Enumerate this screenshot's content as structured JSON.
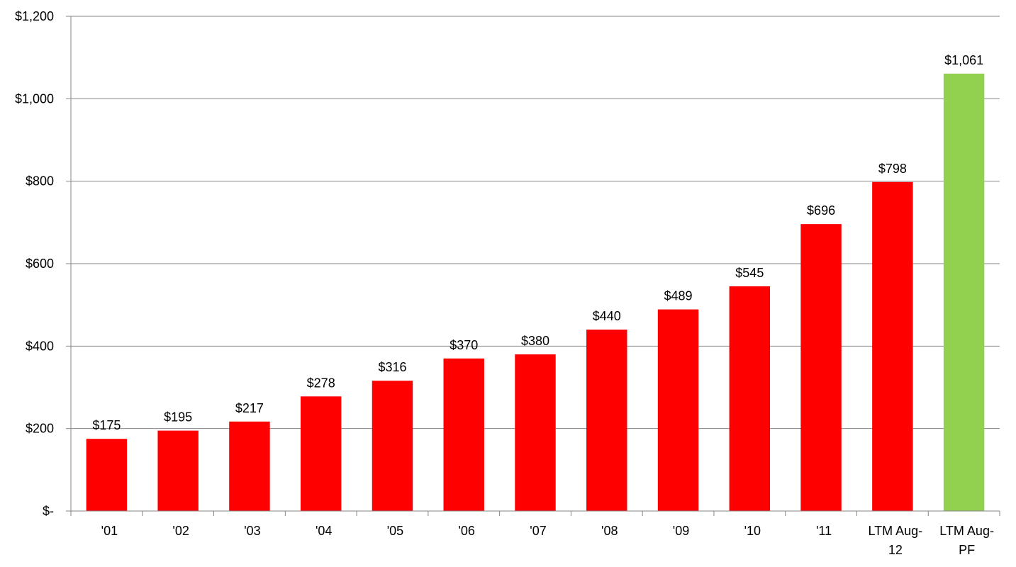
{
  "chart_data": {
    "type": "bar",
    "title": "",
    "xlabel": "",
    "ylabel": "",
    "ylim": [
      0,
      1200
    ],
    "grid": true,
    "legend": "none",
    "y_ticks": [
      {
        "value": 0,
        "label": "$-"
      },
      {
        "value": 200,
        "label": "$200"
      },
      {
        "value": 400,
        "label": "$400"
      },
      {
        "value": 600,
        "label": "$600"
      },
      {
        "value": 800,
        "label": "$800"
      },
      {
        "value": 1000,
        "label": "$1,000"
      },
      {
        "value": 1200,
        "label": "$1,200"
      }
    ],
    "categories": [
      [
        "'01"
      ],
      [
        "'02"
      ],
      [
        "'03"
      ],
      [
        "'04"
      ],
      [
        "'05"
      ],
      [
        "'06"
      ],
      [
        "'07"
      ],
      [
        "'08"
      ],
      [
        "'09"
      ],
      [
        "'10"
      ],
      [
        "'11"
      ],
      [
        "LTM Aug-",
        "12"
      ],
      [
        "LTM Aug-",
        "PF"
      ]
    ],
    "values": [
      175,
      195,
      217,
      278,
      316,
      370,
      380,
      440,
      489,
      545,
      696,
      798,
      1061
    ],
    "data_labels": [
      "$175",
      "$195",
      "$217",
      "$278",
      "$316",
      "$370",
      "$380",
      "$440",
      "$489",
      "$545",
      "$696",
      "$798",
      "$1,061"
    ],
    "bar_colors": [
      "#ff0000",
      "#ff0000",
      "#ff0000",
      "#ff0000",
      "#ff0000",
      "#ff0000",
      "#ff0000",
      "#ff0000",
      "#ff0000",
      "#ff0000",
      "#ff0000",
      "#ff0000",
      "#92d050"
    ],
    "gridline_color": "#868686",
    "axis_color": "#868686"
  }
}
